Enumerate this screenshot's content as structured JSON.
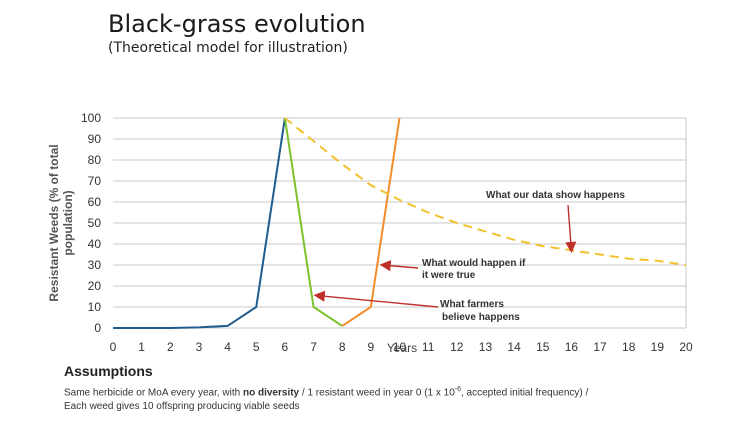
{
  "page": {
    "title": "Black-grass evolution",
    "subtitle": "(Theoretical model for illustration)"
  },
  "assumptions": {
    "heading": "Assumptions",
    "line1_a": "Same herbicide or MoA every year, with ",
    "line1_b": "no diversity",
    "line1_c": " / 1 resistant weed in year 0 (1 x 10",
    "line1_sup": "-6",
    "line1_d": ", accepted initial frequency) /",
    "line2": "Each weed gives 10 offspring producing viable seeds"
  },
  "chart_data": {
    "type": "line",
    "title": "Black-grass evolution",
    "subtitle": "(Theoretical model for illustration)",
    "xlabel": "Years",
    "ylabel": "Resistant Weeds (% of total population)",
    "xlim": [
      0,
      20
    ],
    "ylim": [
      0,
      100
    ],
    "xticks": [
      "0",
      "1",
      "2",
      "3",
      "4",
      "5",
      "6",
      "7",
      "8",
      "9",
      "10",
      "11",
      "12",
      "13",
      "14",
      "15",
      "16",
      "17",
      "18",
      "19",
      "20"
    ],
    "yticks": [
      "0",
      "10",
      "20",
      "30",
      "40",
      "50",
      "60",
      "70",
      "80",
      "90",
      "100"
    ],
    "grid": true,
    "series": [
      {
        "id": "initial",
        "color": "#1f5b8c",
        "dashed": false,
        "points": [
          [
            0,
            0
          ],
          [
            1,
            0
          ],
          [
            2,
            0
          ],
          [
            3,
            0.3
          ],
          [
            4,
            1
          ],
          [
            5,
            10
          ],
          [
            6,
            100
          ]
        ]
      },
      {
        "id": "farmers",
        "color": "#7cc22a",
        "dashed": false,
        "points": [
          [
            6,
            100
          ],
          [
            7,
            10
          ],
          [
            8,
            1
          ]
        ]
      },
      {
        "id": "would_happen",
        "color": "#f28c28",
        "dashed": false,
        "points": [
          [
            8,
            1
          ],
          [
            9,
            10
          ],
          [
            10,
            100
          ]
        ]
      },
      {
        "id": "data_show",
        "color": "#f2c12e",
        "dashed": true,
        "points": [
          [
            6,
            100
          ],
          [
            7,
            89
          ],
          [
            8,
            78
          ],
          [
            9,
            68
          ],
          [
            10,
            61
          ],
          [
            11,
            55
          ],
          [
            12,
            50
          ],
          [
            13,
            46
          ],
          [
            14,
            42
          ],
          [
            15,
            39
          ],
          [
            16,
            37
          ],
          [
            17,
            35
          ],
          [
            18,
            33
          ],
          [
            19,
            32
          ],
          [
            20,
            30
          ]
        ]
      }
    ],
    "annotations": [
      {
        "id": "data_show",
        "text": "What our data show happens",
        "bold": true,
        "arrow_to": [
          16,
          37
        ]
      },
      {
        "id": "would_happen",
        "text": "What would happen if it were true",
        "bold": true,
        "arrow_to": [
          9.4,
          30
        ]
      },
      {
        "id": "farmers",
        "text": "What farmers believe happens",
        "bold": true,
        "arrow_to": [
          7.1,
          15.5
        ]
      }
    ],
    "annotation_color": "#c0302a"
  }
}
